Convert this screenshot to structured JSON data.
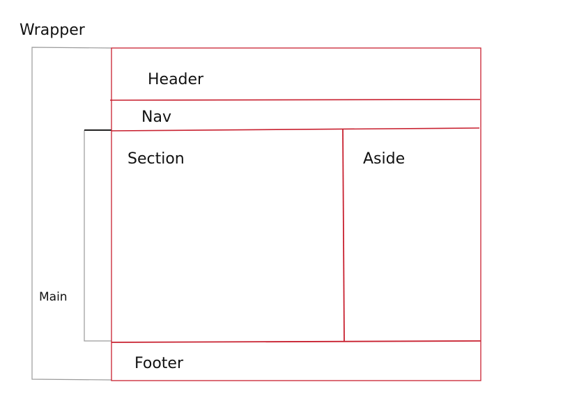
{
  "labels": {
    "wrapper": "Wrapper",
    "header": "Header",
    "nav": "Nav",
    "section": "Section",
    "aside": "Aside",
    "main": "Main",
    "footer": "Footer"
  },
  "colors": {
    "layout_line": "#c8202f",
    "wrapper_bracket": "#9a9a9a",
    "main_bracket": "#9a9a9a",
    "main_bracket_top": "#000000",
    "text": "#111111"
  }
}
